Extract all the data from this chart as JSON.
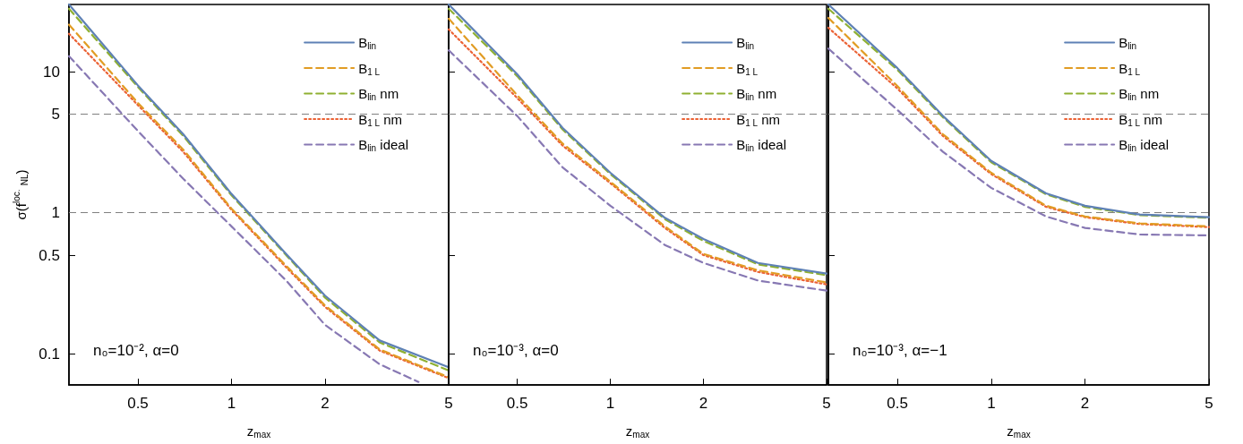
{
  "chart_data": [
    {
      "type": "line",
      "xlabel": "z$_{max}$",
      "ylabel": "σ(f$^{loc.}$$_{NL}$)",
      "log": "xy",
      "grid": false,
      "legend": "top right",
      "marker": "none",
      "xlim": [
        0.3,
        5
      ],
      "ylim": [
        0.06,
        30
      ],
      "xticks": [
        0.5,
        1,
        2,
        5
      ],
      "yticks": [
        0.1,
        0.5,
        1,
        5,
        10
      ],
      "x": [
        0.3,
        0.5,
        0.7,
        1,
        1.5,
        2,
        3,
        5
      ],
      "annotations": [
        "n₀=10⁻², α=0"
      ],
      "ref_lines": [
        {
          "axis": "y",
          "value": 1,
          "color": "#808080",
          "line_style": "dashed"
        },
        {
          "axis": "y",
          "value": 5,
          "color": "#808080",
          "line_style": "dashed"
        }
      ],
      "series": [
        {
          "name": "B$_{lin}$",
          "color": "#5e81b5",
          "line_style": "solid",
          "values": [
            30,
            8.0,
            3.6,
            1.36,
            0.51,
            0.258,
            0.124,
            0.08
          ]
        },
        {
          "name": "B$_{1 L}$",
          "color": "#e19c24",
          "line_style": "dashed",
          "values": [
            21.6,
            6.0,
            2.8,
            1.07,
            0.42,
            0.22,
            0.107,
            0.068
          ]
        },
        {
          "name": "B$_{lin}$ nm",
          "color": "#8fb032",
          "line_style": "dashed",
          "values": [
            28,
            7.8,
            3.5,
            1.33,
            0.5,
            0.25,
            0.12,
            0.076
          ]
        },
        {
          "name": "B$_{1 L}$ nm",
          "color": "#eb6235",
          "line_style": "dotted",
          "values": [
            18.6,
            5.8,
            2.7,
            1.05,
            0.41,
            0.215,
            0.105,
            0.067
          ]
        },
        {
          "name": "B$_{lin}$ ideal",
          "color": "#8778b3",
          "line_style": "dashed",
          "x": [
            0.3,
            0.5,
            0.7,
            1,
            1.5,
            2,
            3,
            4
          ],
          "values": [
            12.9,
            3.8,
            1.74,
            0.8,
            0.33,
            0.16,
            0.084,
            0.063
          ]
        }
      ]
    },
    {
      "type": "line",
      "xlabel": "z$_{max}$",
      "log": "xy",
      "grid": false,
      "legend": "top right",
      "marker": "none",
      "tick_labels": "x",
      "xlim": [
        0.3,
        5
      ],
      "ylim": [
        0.06,
        30
      ],
      "xticks": [
        0.5,
        1,
        2,
        5
      ],
      "yticks": [
        0.1,
        0.5,
        1,
        5,
        10
      ],
      "x": [
        0.3,
        0.5,
        0.7,
        1,
        1.5,
        2,
        3,
        5
      ],
      "annotations": [
        "n₀=10⁻³, α=0"
      ],
      "ref_lines": [
        {
          "axis": "y",
          "value": 1,
          "color": "#808080",
          "line_style": "dashed"
        },
        {
          "axis": "y",
          "value": 5,
          "color": "#808080",
          "line_style": "dashed"
        }
      ],
      "series": [
        {
          "name": "B$_{lin}$",
          "color": "#5e81b5",
          "line_style": "solid",
          "values": [
            30,
            9.6,
            4.0,
            1.92,
            0.92,
            0.65,
            0.44,
            0.37
          ]
        },
        {
          "name": "B$_{1 L}$",
          "color": "#e19c24",
          "line_style": "dashed",
          "values": [
            23.8,
            6.8,
            3.1,
            1.66,
            0.8,
            0.51,
            0.39,
            0.32
          ]
        },
        {
          "name": "B$_{lin}$ nm",
          "color": "#8fb032",
          "line_style": "dashed",
          "values": [
            28,
            9.3,
            3.9,
            1.88,
            0.9,
            0.63,
            0.43,
            0.36
          ]
        },
        {
          "name": "B$_{1 L}$ nm",
          "color": "#eb6235",
          "line_style": "dotted",
          "values": [
            20,
            6.5,
            3.0,
            1.62,
            0.78,
            0.5,
            0.38,
            0.31
          ]
        },
        {
          "name": "B$_{lin}$ ideal",
          "color": "#8778b3",
          "line_style": "dashed",
          "values": [
            14.2,
            4.85,
            2.1,
            1.12,
            0.59,
            0.44,
            0.33,
            0.28
          ]
        }
      ]
    },
    {
      "type": "line",
      "xlabel": "z$_{max}$",
      "log": "xy",
      "grid": false,
      "legend": "top right",
      "marker": "none",
      "tick_labels": "x",
      "xlim": [
        0.3,
        5
      ],
      "ylim": [
        0.06,
        30
      ],
      "xticks": [
        0.5,
        1,
        2,
        5
      ],
      "yticks": [
        0.1,
        0.5,
        1,
        5,
        10
      ],
      "x": [
        0.3,
        0.5,
        0.7,
        1,
        1.5,
        2,
        3,
        5
      ],
      "annotations": [
        "n₀=10⁻³, α=−1"
      ],
      "ref_lines": [
        {
          "axis": "y",
          "value": 1,
          "color": "#808080",
          "line_style": "dashed"
        },
        {
          "axis": "y",
          "value": 5,
          "color": "#808080",
          "line_style": "dashed"
        }
      ],
      "series": [
        {
          "name": "B$_{lin}$",
          "color": "#5e81b5",
          "line_style": "solid",
          "values": [
            30,
            10.6,
            4.85,
            2.33,
            1.37,
            1.12,
            0.97,
            0.93
          ]
        },
        {
          "name": "B$_{1 L}$",
          "color": "#e19c24",
          "line_style": "dashed",
          "values": [
            24.1,
            7.9,
            3.6,
            1.92,
            1.12,
            0.94,
            0.84,
            0.8
          ]
        },
        {
          "name": "B$_{lin}$ nm",
          "color": "#8fb032",
          "line_style": "dashed",
          "values": [
            28,
            10.3,
            4.75,
            2.28,
            1.35,
            1.1,
            0.96,
            0.92
          ]
        },
        {
          "name": "B$_{1 L}$ nm",
          "color": "#eb6235",
          "line_style": "dotted",
          "values": [
            20.5,
            7.6,
            3.5,
            1.88,
            1.1,
            0.93,
            0.83,
            0.79
          ]
        },
        {
          "name": "B$_{lin}$ ideal",
          "color": "#8778b3",
          "line_style": "dashed",
          "values": [
            14.6,
            5.35,
            2.7,
            1.5,
            0.94,
            0.78,
            0.7,
            0.69
          ]
        }
      ]
    }
  ]
}
